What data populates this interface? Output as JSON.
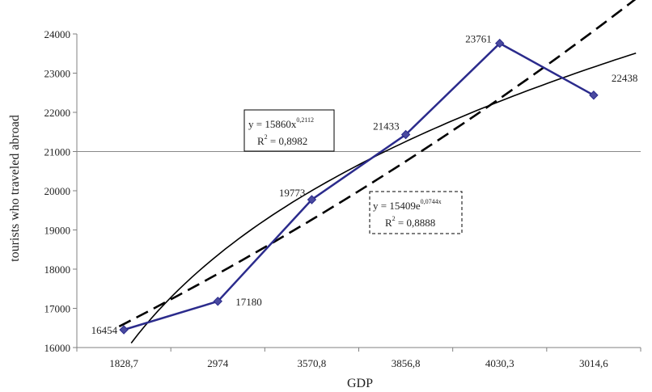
{
  "chart_data": {
    "type": "line",
    "xlabel": "GDP",
    "ylabel": "tourists who traveled abroad",
    "categories": [
      "1828,7",
      "2974",
      "3570,8",
      "3856,8",
      "4030,3",
      "3014,6"
    ],
    "ylim": [
      16000,
      24000
    ],
    "yticks": [
      "16000",
      "17000",
      "18000",
      "19000",
      "20000",
      "21000",
      "22000",
      "23000",
      "24000"
    ],
    "series": [
      {
        "values": [
          16454,
          17180,
          19773,
          21433,
          23761,
          22438
        ],
        "labels": [
          "16454",
          "17180",
          "19773",
          "21433",
          "23761",
          "22438"
        ],
        "color": "#2b2b8c",
        "marker": "diamond"
      }
    ],
    "trendlines": [
      {
        "kind": "power",
        "equation_main": "y = 15860x",
        "equation_exp": "0,2112",
        "r2_base": "R",
        "r2_exp": "2",
        "r2_value": " = 0,8982",
        "style": "solid",
        "color": "#000000"
      },
      {
        "kind": "exponential",
        "equation_main": "y = 15409e",
        "equation_exp": "0,0744x",
        "r2_base": "R",
        "r2_exp": "2",
        "r2_value": " = 0,8888",
        "style": "dashed",
        "color": "#000000"
      }
    ],
    "reference_line": {
      "y": 21000,
      "color": "#888888"
    },
    "grid": false,
    "legend": "none"
  }
}
